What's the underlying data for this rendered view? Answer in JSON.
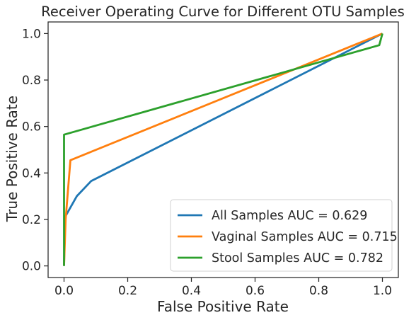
{
  "chart_data": {
    "type": "line",
    "title": "Receiver Operating Curve for Different OTU Samples",
    "xlabel": "False Positive Rate",
    "ylabel": "True Positive Rate",
    "xlim": [
      -0.05,
      1.05
    ],
    "ylim": [
      -0.05,
      1.05
    ],
    "xticks": [
      0.0,
      0.2,
      0.4,
      0.6,
      0.8,
      1.0
    ],
    "yticks": [
      0.0,
      0.2,
      0.4,
      0.6,
      0.8,
      1.0
    ],
    "xtick_labels": [
      "0.0",
      "0.2",
      "0.4",
      "0.6",
      "0.8",
      "1.0"
    ],
    "ytick_labels": [
      "0.0",
      "0.2",
      "0.4",
      "0.6",
      "0.8",
      "1.0"
    ],
    "grid": false,
    "legend_position": "bottom-right",
    "series": [
      {
        "name": "All Samples AUC = 0.629",
        "color": "#1f77b4",
        "x": [
          0.0,
          0.003,
          0.04,
          0.085,
          1.0
        ],
        "y": [
          0.0,
          0.21,
          0.3,
          0.365,
          1.0
        ]
      },
      {
        "name": "Vaginal Samples AUC = 0.715",
        "color": "#ff7f0e",
        "x": [
          0.0,
          0.005,
          0.02,
          1.0
        ],
        "y": [
          0.0,
          0.2,
          0.455,
          1.0
        ]
      },
      {
        "name": "Stool Samples AUC = 0.782",
        "color": "#2ca02c",
        "x": [
          0.0,
          0.0,
          0.99,
          1.0
        ],
        "y": [
          0.0,
          0.565,
          0.95,
          1.0
        ]
      }
    ]
  }
}
